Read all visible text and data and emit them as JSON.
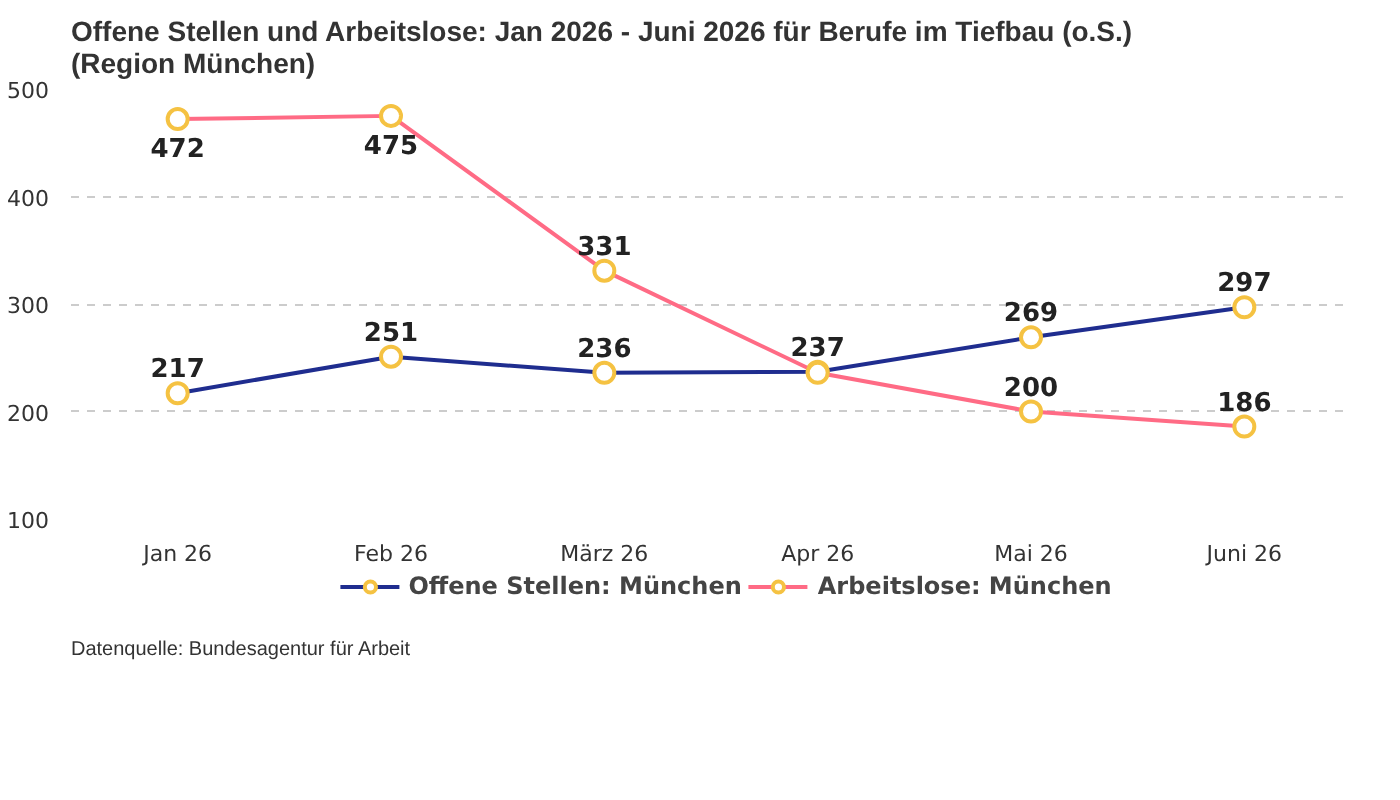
{
  "chart_data": {
    "type": "line",
    "title": "Offene Stellen und Arbeitslose: Jan 2026 - Juni 2026 für Berufe im Tiefbau (o.S.)\n(Region München)",
    "categories": [
      "Jan 26",
      "Feb 26",
      "März 26",
      "Apr 26",
      "Mai 26",
      "Juni 26"
    ],
    "series": [
      {
        "name": "Offene Stellen: München",
        "color": "#1f2d8f",
        "values": [
          217,
          251,
          236,
          237,
          269,
          297
        ],
        "value_labels": [
          "217",
          "251",
          "236",
          "237",
          "269",
          "297"
        ]
      },
      {
        "name": "Arbeitslose: München",
        "color": "#ff6b85",
        "values": [
          472,
          475,
          331,
          236,
          200,
          186
        ],
        "value_labels": [
          "472",
          "475",
          "331",
          null,
          "200",
          "186"
        ]
      }
    ],
    "marker": "circle",
    "ylim": [
      100,
      500
    ],
    "yticks": [
      100,
      200,
      300,
      400,
      500
    ],
    "grid": "y",
    "legend": "bottom",
    "annotations": [
      "Datenquelle: Bundesagentur für Arbeit"
    ]
  }
}
